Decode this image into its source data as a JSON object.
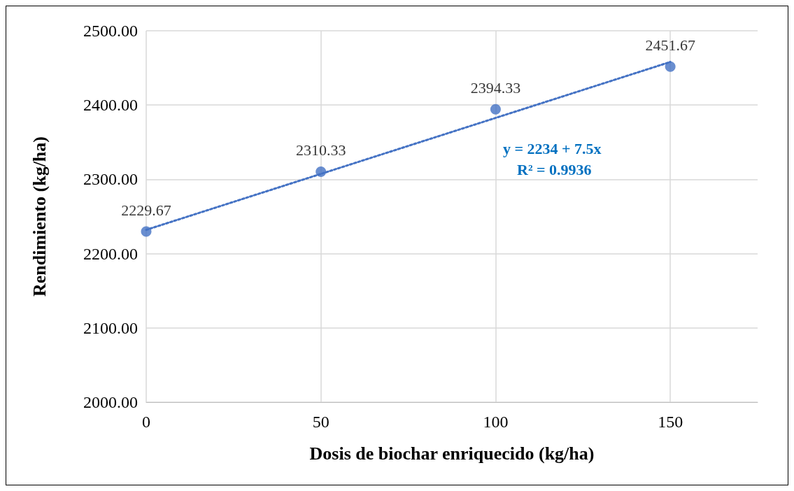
{
  "chart_data": {
    "type": "scatter",
    "xlabel": "Dosis de biochar enriquecido (kg/ha)",
    "ylabel": "Rendimiento (kg/ha)",
    "x": [
      0,
      50,
      100,
      150
    ],
    "xlim": [
      0,
      175
    ],
    "xticks": [
      0,
      50,
      100,
      150
    ],
    "ylim": [
      2000,
      2500
    ],
    "yticks": [
      {
        "value": 2000,
        "label": "2000.00"
      },
      {
        "value": 2100,
        "label": "2100.00"
      },
      {
        "value": 2200,
        "label": "2200.00"
      },
      {
        "value": 2300,
        "label": "2300.00"
      },
      {
        "value": 2400,
        "label": "2400.00"
      },
      {
        "value": 2500,
        "label": "2500.00"
      }
    ],
    "grid": true,
    "marker": "circle",
    "series": [
      {
        "color": "#4472c4",
        "values": [
          2229.67,
          2310.33,
          2394.33,
          2451.67
        ],
        "value_labels": [
          "2229.67",
          "2310.33",
          "2394.33",
          "2451.67"
        ]
      },
      {
        "type": "line",
        "color": "#4472c4",
        "line_style": "dotted",
        "marker": "none",
        "x": [
          0,
          150
        ],
        "values": [
          2232,
          2458
        ]
      }
    ],
    "annotations": [
      "y = 2234 + 7.5x",
      "R² = 0.9936"
    ]
  }
}
